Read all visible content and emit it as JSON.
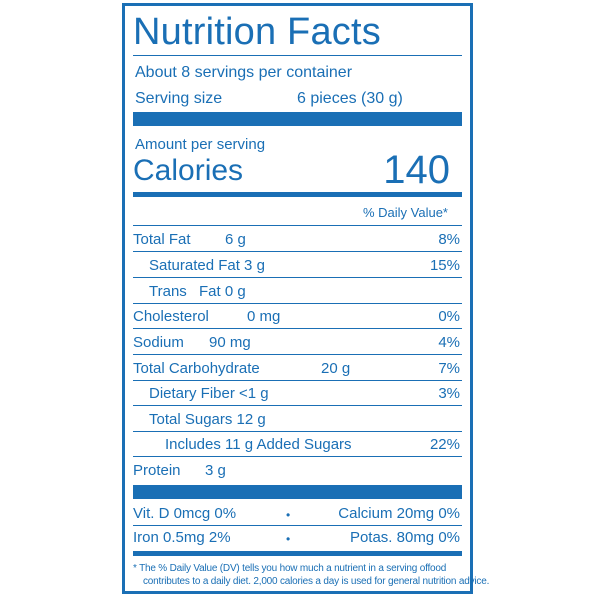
{
  "title": "Nutrition Facts",
  "servings_per_container": "About 8 servings per container",
  "serving_size_label": "Serving size",
  "serving_size_value": "6 pieces (30 g)",
  "amount_per_serving": "Amount per serving",
  "calories_label": "Calories",
  "calories_value": "140",
  "daily_value_header": "% Daily Value*",
  "rows": [
    {
      "name": "Total Fat",
      "amount": "6 g",
      "dv": "8%"
    },
    {
      "name": "Saturated Fat 3 g",
      "amount": "",
      "dv": "15%"
    },
    {
      "name": "Trans",
      "amount": "Fat 0 g",
      "dv": ""
    },
    {
      "name": "Cholesterol",
      "amount": "0 mg",
      "dv": "0%"
    },
    {
      "name": "Sodium",
      "amount": "90 mg",
      "dv": "4%"
    },
    {
      "name": "Total Carbohydrate",
      "amount": "20 g",
      "dv": "7%"
    },
    {
      "name": "Dietary Fiber <1 g",
      "amount": "",
      "dv": "3%"
    },
    {
      "name": "Total Sugars 12 g",
      "amount": "",
      "dv": ""
    },
    {
      "name": "Includes 11 g Added Sugars",
      "amount": "",
      "dv": "22%"
    },
    {
      "name": "Protein",
      "amount": "3 g",
      "dv": ""
    }
  ],
  "vitamins": [
    {
      "left": "Vit. D 0mcg 0%",
      "sep": "•",
      "right": "Calcium 20mg 0%"
    },
    {
      "left": "Iron 0.5mg 2%",
      "sep": "•",
      "right": "Potas. 80mg 0%"
    }
  ],
  "footnote": [
    "* The % Daily Value (DV) tells you how much a nutrient in a serving offood",
    "contributes to a daily diet. 2,000 calories a day is used for general nutrition advice."
  ],
  "colors": {
    "primary": "#1a6fb5"
  }
}
